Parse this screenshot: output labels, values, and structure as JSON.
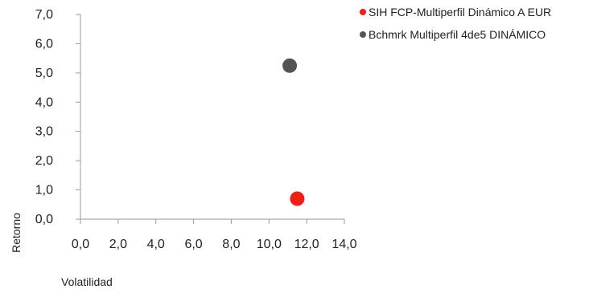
{
  "chart_data": {
    "type": "scatter",
    "title": "",
    "xlabel": "Volatilidad",
    "ylabel": "Retorno",
    "xlim": [
      0,
      14
    ],
    "ylim": [
      0,
      7
    ],
    "x_ticks": [
      0,
      2,
      4,
      6,
      8,
      10,
      12,
      14
    ],
    "y_ticks": [
      0,
      1,
      2,
      3,
      4,
      5,
      6,
      7
    ],
    "x_tick_labels": [
      "0,0",
      "2,0",
      "4,0",
      "6,0",
      "8,0",
      "10,0",
      "12,0",
      "14,0"
    ],
    "y_tick_labels": [
      "0,0",
      "1,0",
      "2,0",
      "3,0",
      "4,0",
      "5,0",
      "6,0",
      "7,0"
    ],
    "grid": false,
    "legend_position": "top-right",
    "series": [
      {
        "name": "SIH FCP-Multiperfil Dinámico A EUR",
        "color": "#f01e14",
        "points": [
          {
            "x": 11.5,
            "y": 0.7
          }
        ]
      },
      {
        "name": "Bchmrk Multiperfil 4de5 DINÁMICO",
        "color": "#545454",
        "points": [
          {
            "x": 11.1,
            "y": 5.25
          }
        ]
      }
    ]
  }
}
